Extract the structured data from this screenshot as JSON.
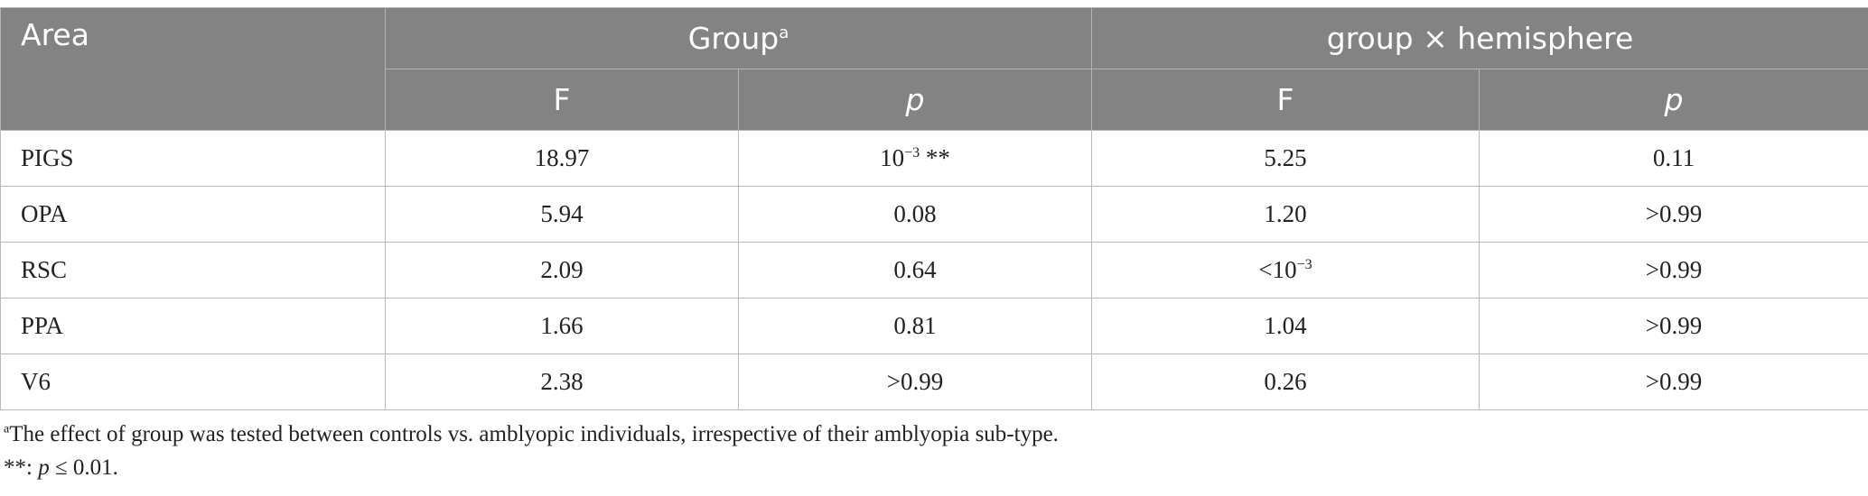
{
  "header": {
    "area": "Area",
    "group": "Group",
    "group_note_mark": "a",
    "interaction": "group × hemisphere",
    "f_label": "F",
    "p_label": "p"
  },
  "rows": [
    {
      "area": "PIGS",
      "group_f": "18.97",
      "group_p_base": "10",
      "group_p_exp": "−3",
      "group_p_suffix": " **",
      "inter_f": "5.25",
      "inter_p": "0.11"
    },
    {
      "area": "OPA",
      "group_f": "5.94",
      "group_p": "0.08",
      "inter_f": "1.20",
      "inter_p": ">0.99"
    },
    {
      "area": "RSC",
      "group_f": "2.09",
      "group_p": "0.64",
      "inter_f_base": "<10",
      "inter_f_exp": "−3",
      "inter_p": ">0.99"
    },
    {
      "area": "PPA",
      "group_f": "1.66",
      "group_p": "0.81",
      "inter_f": "1.04",
      "inter_p": ">0.99"
    },
    {
      "area": "V6",
      "group_f": "2.38",
      "group_p": ">0.99",
      "inter_f": "0.26",
      "inter_p": ">0.99"
    }
  ],
  "footnotes": {
    "a_mark": "a",
    "a_text": "The effect of group was tested between controls vs. amblyopic individuals, irrespective of their amblyopia sub-type.",
    "b_prefix": "**: ",
    "b_var": "p",
    "b_rest": " ≤ 0.01."
  }
}
